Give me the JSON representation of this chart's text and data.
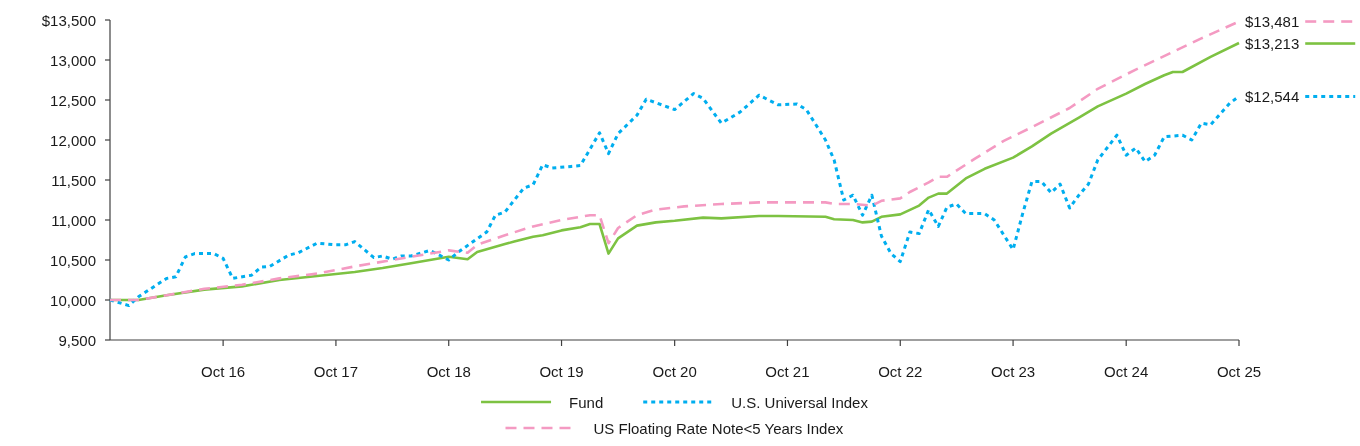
{
  "chart_data": {
    "type": "line",
    "legend": "bottom",
    "xlim": [
      "2015-10",
      "2025-10"
    ],
    "xticks": [
      {
        "value": "2016-10",
        "label": "Oct 16"
      },
      {
        "value": "2017-10",
        "label": "Oct 17"
      },
      {
        "value": "2018-10",
        "label": "Oct 18"
      },
      {
        "value": "2019-10",
        "label": "Oct 19"
      },
      {
        "value": "2020-10",
        "label": "Oct 20"
      },
      {
        "value": "2021-10",
        "label": "Oct 21"
      },
      {
        "value": "2022-10",
        "label": "Oct 22"
      },
      {
        "value": "2023-10",
        "label": "Oct 23"
      },
      {
        "value": "2024-10",
        "label": "Oct 24"
      },
      {
        "value": "2025-10",
        "label": "Oct 25"
      }
    ],
    "ylim": [
      9500,
      13500
    ],
    "yticks": [
      {
        "value": 9500,
        "label": "9,500"
      },
      {
        "value": 10000,
        "label": "10,000"
      },
      {
        "value": 10500,
        "label": "10,500"
      },
      {
        "value": 11000,
        "label": "11,000"
      },
      {
        "value": 11500,
        "label": "11,500"
      },
      {
        "value": 12000,
        "label": "12,000"
      },
      {
        "value": 12500,
        "label": "12,500"
      },
      {
        "value": 13000,
        "label": "13,000"
      },
      {
        "value": 13500,
        "label": "$13,500"
      }
    ],
    "series": [
      {
        "name": "Fund",
        "color": "#7dc242",
        "line_style": "solid",
        "x": [
          "2015-10",
          "2016-01",
          "2016-04",
          "2016-08",
          "2016-12",
          "2017-04",
          "2017-08",
          "2017-12",
          "2018-03",
          "2018-06",
          "2018-10",
          "2018-12",
          "2019-01",
          "2019-04",
          "2019-05",
          "2019-07",
          "2019-08",
          "2019-10",
          "2019-12",
          "2020-01",
          "2020-02",
          "2020-03",
          "2020-04",
          "2020-06",
          "2020-08",
          "2020-10",
          "2021-01",
          "2021-03",
          "2021-07",
          "2021-09",
          "2022-02",
          "2022-03",
          "2022-05",
          "2022-06",
          "2022-07",
          "2022-08",
          "2022-10",
          "2022-12",
          "2023-01",
          "2023-02",
          "2023-03",
          "2023-05",
          "2023-07",
          "2023-10",
          "2023-12",
          "2024-02",
          "2024-05",
          "2024-07",
          "2024-10",
          "2024-12",
          "2025-02",
          "2025-03",
          "2025-04",
          "2025-07",
          "2025-10"
        ],
        "values": [
          10000,
          10000,
          10060,
          10130,
          10170,
          10250,
          10300,
          10350,
          10400,
          10460,
          10540,
          10510,
          10600,
          10700,
          10730,
          10790,
          10810,
          10870,
          10910,
          10950,
          10950,
          10580,
          10770,
          10930,
          10970,
          10990,
          11030,
          11020,
          11050,
          11050,
          11040,
          11010,
          11000,
          10970,
          10980,
          11040,
          11070,
          11180,
          11280,
          11330,
          11330,
          11520,
          11640,
          11780,
          11920,
          12080,
          12280,
          12420,
          12580,
          12700,
          12810,
          12850,
          12850,
          13040,
          13213
        ],
        "value_labels": [
          null,
          null,
          null,
          null,
          null,
          null,
          null,
          null,
          null,
          null,
          null,
          null,
          null,
          null,
          null,
          null,
          null,
          null,
          null,
          null,
          null,
          null,
          null,
          null,
          null,
          null,
          null,
          null,
          null,
          null,
          null,
          null,
          null,
          null,
          null,
          null,
          null,
          null,
          null,
          null,
          null,
          null,
          null,
          null,
          null,
          null,
          null,
          null,
          null,
          null,
          null,
          null,
          null,
          null,
          "$13,213"
        ]
      },
      {
        "name": "U.S. Universal Index",
        "color": "#00aeef",
        "line_style": "dotted",
        "x": [
          "2015-10",
          "2015-12",
          "2016-01",
          "2016-04",
          "2016-05",
          "2016-06",
          "2016-07",
          "2016-08",
          "2016-09",
          "2016-10",
          "2016-11",
          "2017-01",
          "2017-02",
          "2017-03",
          "2017-05",
          "2017-06",
          "2017-08",
          "2017-10",
          "2017-11",
          "2017-12",
          "2018-02",
          "2018-03",
          "2018-04",
          "2018-05",
          "2018-06",
          "2018-08",
          "2018-09",
          "2018-10",
          "2018-11",
          "2019-02",
          "2019-03",
          "2019-04",
          "2019-06",
          "2019-07",
          "2019-08",
          "2019-09",
          "2019-11",
          "2019-12",
          "2020-02",
          "2020-03",
          "2020-04",
          "2020-06",
          "2020-07",
          "2020-10",
          "2020-12",
          "2021-01",
          "2021-03",
          "2021-05",
          "2021-07",
          "2021-09",
          "2021-11",
          "2021-12",
          "2022-02",
          "2022-03",
          "2022-04",
          "2022-05",
          "2022-06",
          "2022-07",
          "2022-08",
          "2022-09",
          "2022-10",
          "2022-11",
          "2022-12",
          "2023-01",
          "2023-02",
          "2023-03",
          "2023-04",
          "2023-05",
          "2023-07",
          "2023-08",
          "2023-10",
          "2023-11",
          "2023-12",
          "2024-01",
          "2024-02",
          "2024-03",
          "2024-04",
          "2024-05",
          "2024-06",
          "2024-07",
          "2024-09",
          "2024-10",
          "2024-11",
          "2024-12",
          "2025-01",
          "2025-02",
          "2025-04",
          "2025-05",
          "2025-06",
          "2025-07",
          "2025-09",
          "2025-10"
        ],
        "values": [
          10000,
          9930,
          10040,
          10270,
          10290,
          10540,
          10580,
          10580,
          10580,
          10520,
          10270,
          10310,
          10410,
          10420,
          10560,
          10590,
          10710,
          10690,
          10690,
          10730,
          10530,
          10550,
          10510,
          10550,
          10550,
          10620,
          10560,
          10500,
          10600,
          10850,
          11060,
          11100,
          11400,
          11440,
          11690,
          11650,
          11670,
          11680,
          12090,
          11830,
          12080,
          12310,
          12510,
          12380,
          12580,
          12520,
          12210,
          12350,
          12560,
          12440,
          12450,
          12380,
          12000,
          11750,
          11250,
          11310,
          11060,
          11310,
          10800,
          10580,
          10480,
          10850,
          10830,
          11130,
          10920,
          11160,
          11200,
          11080,
          11080,
          11000,
          10630,
          11080,
          11480,
          11480,
          11340,
          11450,
          11150,
          11310,
          11450,
          11750,
          12060,
          11810,
          11900,
          11730,
          11810,
          12040,
          12060,
          12000,
          12210,
          12190,
          12460,
          12544
        ],
        "value_labels": [
          null,
          null,
          null,
          null,
          null,
          null,
          null,
          null,
          null,
          null,
          null,
          null,
          null,
          null,
          null,
          null,
          null,
          null,
          null,
          null,
          null,
          null,
          null,
          null,
          null,
          null,
          null,
          null,
          null,
          null,
          null,
          null,
          null,
          null,
          null,
          null,
          null,
          null,
          null,
          null,
          null,
          null,
          null,
          null,
          null,
          null,
          null,
          null,
          null,
          null,
          null,
          null,
          null,
          null,
          null,
          null,
          null,
          null,
          null,
          null,
          null,
          null,
          null,
          null,
          null,
          null,
          null,
          null,
          null,
          null,
          null,
          null,
          null,
          null,
          null,
          null,
          null,
          null,
          null,
          null,
          null,
          null,
          null,
          null,
          null,
          null,
          null,
          null,
          null,
          null,
          null,
          "$12,544"
        ]
      },
      {
        "name": "US Floating Rate Note<5 Years Index",
        "color": "#f49ac2",
        "line_style": "dashed",
        "x": [
          "2015-10",
          "2016-01",
          "2016-04",
          "2016-08",
          "2016-12",
          "2017-04",
          "2017-08",
          "2017-12",
          "2018-04",
          "2018-08",
          "2018-10",
          "2018-12",
          "2019-01",
          "2019-04",
          "2019-07",
          "2019-10",
          "2020-01",
          "2020-02",
          "2020-03",
          "2020-04",
          "2020-06",
          "2020-08",
          "2020-11",
          "2021-03",
          "2021-07",
          "2022-02",
          "2022-03",
          "2022-05",
          "2022-07",
          "2022-08",
          "2022-10",
          "2022-11",
          "2023-01",
          "2023-02",
          "2023-03",
          "2023-06",
          "2023-09",
          "2023-12",
          "2024-04",
          "2024-07",
          "2024-11",
          "2025-03",
          "2025-06",
          "2025-10"
        ],
        "values": [
          10000,
          10000,
          10060,
          10140,
          10190,
          10270,
          10330,
          10420,
          10500,
          10580,
          10620,
          10590,
          10690,
          10810,
          10920,
          11000,
          11060,
          11060,
          10710,
          10900,
          11060,
          11130,
          11170,
          11200,
          11220,
          11220,
          11200,
          11200,
          11180,
          11240,
          11270,
          11350,
          11470,
          11540,
          11540,
          11770,
          11990,
          12160,
          12400,
          12640,
          12880,
          13100,
          13270,
          13481
        ],
        "value_labels": [
          null,
          null,
          null,
          null,
          null,
          null,
          null,
          null,
          null,
          null,
          null,
          null,
          null,
          null,
          null,
          null,
          null,
          null,
          null,
          null,
          null,
          null,
          null,
          null,
          null,
          null,
          null,
          null,
          null,
          null,
          null,
          null,
          null,
          null,
          null,
          null,
          null,
          null,
          null,
          null,
          null,
          null,
          null,
          "$13,481"
        ]
      }
    ]
  }
}
